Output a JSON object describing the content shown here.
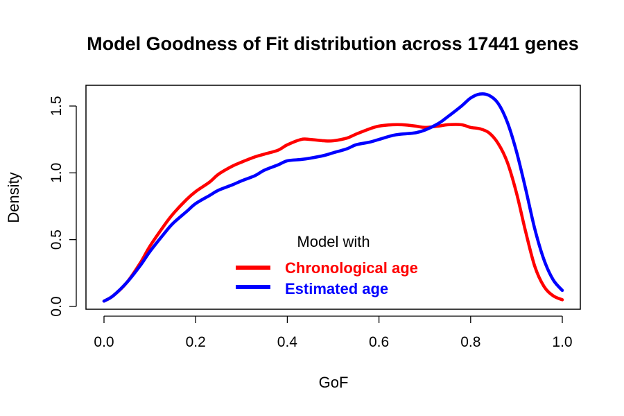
{
  "chart_data": {
    "type": "line",
    "title": "Model Goodness of Fit distribution across 17441 genes",
    "xlabel": "GoF",
    "ylabel": "Density",
    "xlim": [
      0,
      1
    ],
    "ylim": [
      0,
      1.62
    ],
    "x_ticks": [
      0.0,
      0.2,
      0.4,
      0.6,
      0.8,
      1.0
    ],
    "x_tick_labels": [
      "0.0",
      "0.2",
      "0.4",
      "0.6",
      "0.8",
      "1.0"
    ],
    "y_ticks": [
      0.0,
      0.5,
      1.0,
      1.5
    ],
    "y_tick_labels": [
      "0.0",
      "0.5",
      "1.0",
      "1.5"
    ],
    "grid": false,
    "legend": {
      "title": "Model with",
      "placement": "bottom-center",
      "entries": [
        "Chronological age",
        "Estimated age"
      ]
    },
    "series": [
      {
        "name": "Chronological age",
        "color": "#ff0000",
        "x": [
          0.0,
          0.02,
          0.05,
          0.08,
          0.1,
          0.13,
          0.15,
          0.18,
          0.2,
          0.23,
          0.25,
          0.28,
          0.3,
          0.33,
          0.35,
          0.38,
          0.4,
          0.43,
          0.45,
          0.48,
          0.5,
          0.53,
          0.55,
          0.58,
          0.6,
          0.63,
          0.65,
          0.68,
          0.7,
          0.73,
          0.75,
          0.78,
          0.8,
          0.82,
          0.84,
          0.86,
          0.88,
          0.9,
          0.92,
          0.94,
          0.96,
          0.98,
          1.0
        ],
        "y": [
          0.04,
          0.08,
          0.18,
          0.33,
          0.45,
          0.6,
          0.69,
          0.8,
          0.86,
          0.93,
          0.99,
          1.05,
          1.08,
          1.12,
          1.14,
          1.17,
          1.21,
          1.25,
          1.25,
          1.24,
          1.24,
          1.26,
          1.29,
          1.33,
          1.35,
          1.36,
          1.36,
          1.35,
          1.34,
          1.35,
          1.36,
          1.36,
          1.34,
          1.33,
          1.3,
          1.22,
          1.08,
          0.85,
          0.56,
          0.3,
          0.15,
          0.08,
          0.05
        ]
      },
      {
        "name": "Estimated age",
        "color": "#0000ff",
        "x": [
          0.0,
          0.02,
          0.05,
          0.08,
          0.1,
          0.13,
          0.15,
          0.18,
          0.2,
          0.23,
          0.25,
          0.28,
          0.3,
          0.33,
          0.35,
          0.38,
          0.4,
          0.43,
          0.45,
          0.48,
          0.5,
          0.53,
          0.55,
          0.58,
          0.6,
          0.63,
          0.65,
          0.68,
          0.7,
          0.73,
          0.75,
          0.78,
          0.8,
          0.82,
          0.84,
          0.86,
          0.88,
          0.9,
          0.92,
          0.94,
          0.96,
          0.98,
          1.0
        ],
        "y": [
          0.04,
          0.08,
          0.18,
          0.31,
          0.41,
          0.54,
          0.62,
          0.71,
          0.77,
          0.83,
          0.87,
          0.91,
          0.94,
          0.98,
          1.02,
          1.06,
          1.09,
          1.1,
          1.11,
          1.13,
          1.15,
          1.18,
          1.21,
          1.23,
          1.25,
          1.28,
          1.29,
          1.3,
          1.32,
          1.37,
          1.42,
          1.5,
          1.56,
          1.59,
          1.58,
          1.52,
          1.38,
          1.16,
          0.88,
          0.58,
          0.35,
          0.2,
          0.12
        ]
      }
    ]
  }
}
